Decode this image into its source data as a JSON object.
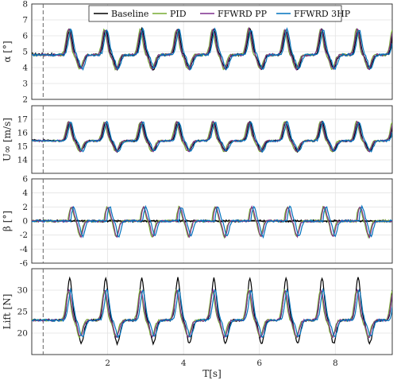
{
  "chart_data": [
    {
      "type": "line",
      "ylabel": "α [°]",
      "ylim": [
        2,
        8
      ],
      "yticks": [
        "2",
        "3",
        "4",
        "5",
        "6",
        "7",
        "8"
      ],
      "baseline": 4.8,
      "amplitude": 1.6,
      "peak_shape": 2.2,
      "grid": true
    },
    {
      "type": "line",
      "ylabel": "U∞ [m/s]",
      "ylim": [
        13,
        18
      ],
      "yticks": [
        "14",
        "15",
        "16",
        "17"
      ],
      "baseline": 15.4,
      "amplitude": 1.4,
      "peak_shape": 1.4,
      "grid": true
    },
    {
      "type": "line",
      "ylabel": "β [°]",
      "ylim": [
        -6,
        6
      ],
      "yticks": [
        "-6",
        "-4",
        "-2",
        "0",
        "2",
        "4",
        "6"
      ],
      "baseline": 0,
      "amplitude": 2.2,
      "peak_shape": 1,
      "zero_line": true,
      "grid": true
    },
    {
      "type": "line",
      "ylabel": "Lift [N]",
      "ylim": [
        15,
        35
      ],
      "yticks": [
        "20",
        "25",
        "30"
      ],
      "baseline": 23,
      "amplitude": 7,
      "peak_shape": 3,
      "grid": true
    }
  ],
  "shared": {
    "xlabel": "T[s]",
    "xlim": [
      0,
      9.5
    ],
    "xticks": [
      "2",
      "4",
      "6",
      "8"
    ],
    "xtick_values": [
      2,
      4,
      6,
      8
    ],
    "dashed_marker_x": 0.3,
    "period_s": 0.95,
    "first_peak_s": 1.0,
    "legend_position": "top"
  },
  "series": [
    {
      "name": "Baseline",
      "color": "#000000"
    },
    {
      "name": "PID",
      "color": "#77ac30"
    },
    {
      "name": "FFWRD PP",
      "color": "#7e2f8e"
    },
    {
      "name": "FFWRD 3HP",
      "color": "#0072bd"
    }
  ]
}
